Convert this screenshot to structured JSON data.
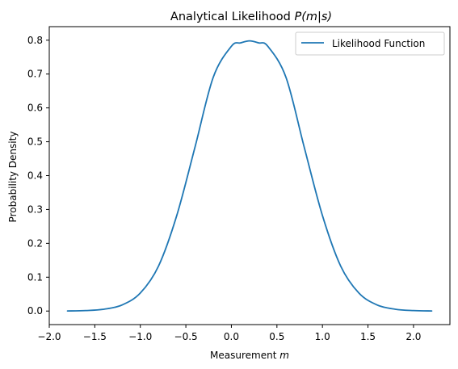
{
  "chart_data": {
    "type": "line",
    "title_prefix": "Analytical Likelihood ",
    "title_math": "P(m|s)",
    "xlabel_prefix": "Measurement ",
    "xlabel_math": "m",
    "ylabel": "Probability Density",
    "xlim": [
      -2.0,
      2.4
    ],
    "ylim": [
      -0.04,
      0.84
    ],
    "xticks": [
      -2.0,
      -1.5,
      -1.0,
      -0.5,
      0.0,
      0.5,
      1.0,
      1.5,
      2.0
    ],
    "xtick_labels": [
      "−2.0",
      "−1.5",
      "−1.0",
      "−0.5",
      "0.0",
      "0.5",
      "1.0",
      "1.5",
      "2.0"
    ],
    "yticks": [
      0.0,
      0.1,
      0.2,
      0.3,
      0.4,
      0.5,
      0.6,
      0.7,
      0.8
    ],
    "ytick_labels": [
      "0.0",
      "0.1",
      "0.2",
      "0.3",
      "0.4",
      "0.5",
      "0.6",
      "0.7",
      "0.8"
    ],
    "grid": false,
    "legend_position": "top-right",
    "series": [
      {
        "name": "Likelihood Function",
        "color": "#1f77b4",
        "x": [
          -1.8,
          -1.6,
          -1.4,
          -1.2,
          -1.0,
          -0.8,
          -0.6,
          -0.4,
          -0.2,
          0.0,
          0.1,
          0.2,
          0.3,
          0.4,
          0.6,
          0.8,
          1.0,
          1.2,
          1.4,
          1.6,
          1.8,
          2.0,
          2.2
        ],
        "y": [
          0.0003,
          0.0014,
          0.0054,
          0.018,
          0.0533,
          0.133,
          0.2821,
          0.4837,
          0.69,
          0.782,
          0.792,
          0.7979,
          0.792,
          0.782,
          0.69,
          0.4837,
          0.2821,
          0.133,
          0.0533,
          0.018,
          0.0054,
          0.0014,
          0.0003
        ]
      }
    ]
  }
}
